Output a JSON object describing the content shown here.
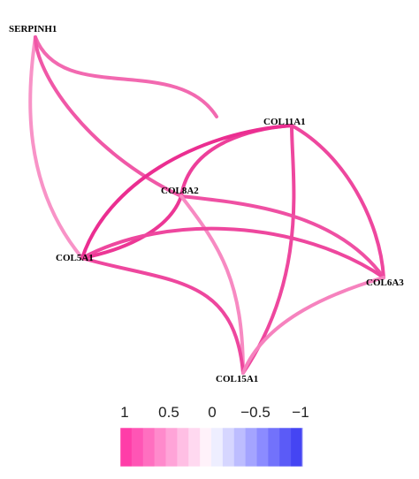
{
  "network": {
    "nodes": [
      {
        "id": "SERPINH1",
        "label": "SERPINH1"
      },
      {
        "id": "COL11A1",
        "label": "COL11A1"
      },
      {
        "id": "COL8A2",
        "label": "COL8A2"
      },
      {
        "id": "COL5A1",
        "label": "COL5A1"
      },
      {
        "id": "COL6A3",
        "label": "COL6A3"
      },
      {
        "id": "COL15A1",
        "label": "COL15A1"
      }
    ],
    "edges": [
      {
        "source": "SERPINH1",
        "target": "COL11A1",
        "correlation": 0.6
      },
      {
        "source": "SERPINH1",
        "target": "COL5A1",
        "correlation": 0.35
      },
      {
        "source": "SERPINH1",
        "target": "COL8A2",
        "correlation": 0.7
      },
      {
        "source": "COL11A1",
        "target": "COL8A2",
        "correlation": 0.85
      },
      {
        "source": "COL11A1",
        "target": "COL5A1",
        "correlation": 0.95
      },
      {
        "source": "COL11A1",
        "target": "COL6A3",
        "correlation": 0.8
      },
      {
        "source": "COL11A1",
        "target": "COL15A1",
        "correlation": 0.8
      },
      {
        "source": "COL8A2",
        "target": "COL5A1",
        "correlation": 0.9
      },
      {
        "source": "COL8A2",
        "target": "COL6A3",
        "correlation": 0.75
      },
      {
        "source": "COL8A2",
        "target": "COL15A1",
        "correlation": 0.4
      },
      {
        "source": "COL5A1",
        "target": "COL6A3",
        "correlation": 0.8
      },
      {
        "source": "COL5A1",
        "target": "COL15A1",
        "correlation": 0.8
      },
      {
        "source": "COL6A3",
        "target": "COL15A1",
        "correlation": 0.45
      }
    ]
  },
  "legend": {
    "ticks": [
      "1",
      "0.5",
      "0",
      "−0.5",
      "−1"
    ],
    "colors": [
      "#ff3da8",
      "#ff55b5",
      "#ff6fc0",
      "#ff8acc",
      "#ffa4d8",
      "#ffbfe4",
      "#ffd9f0",
      "#fff2fa",
      "#eeeeff",
      "#d6d6ff",
      "#bdbdff",
      "#a4a4ff",
      "#8b8bff",
      "#7272fb",
      "#5b5bf7",
      "#4545f3"
    ]
  }
}
